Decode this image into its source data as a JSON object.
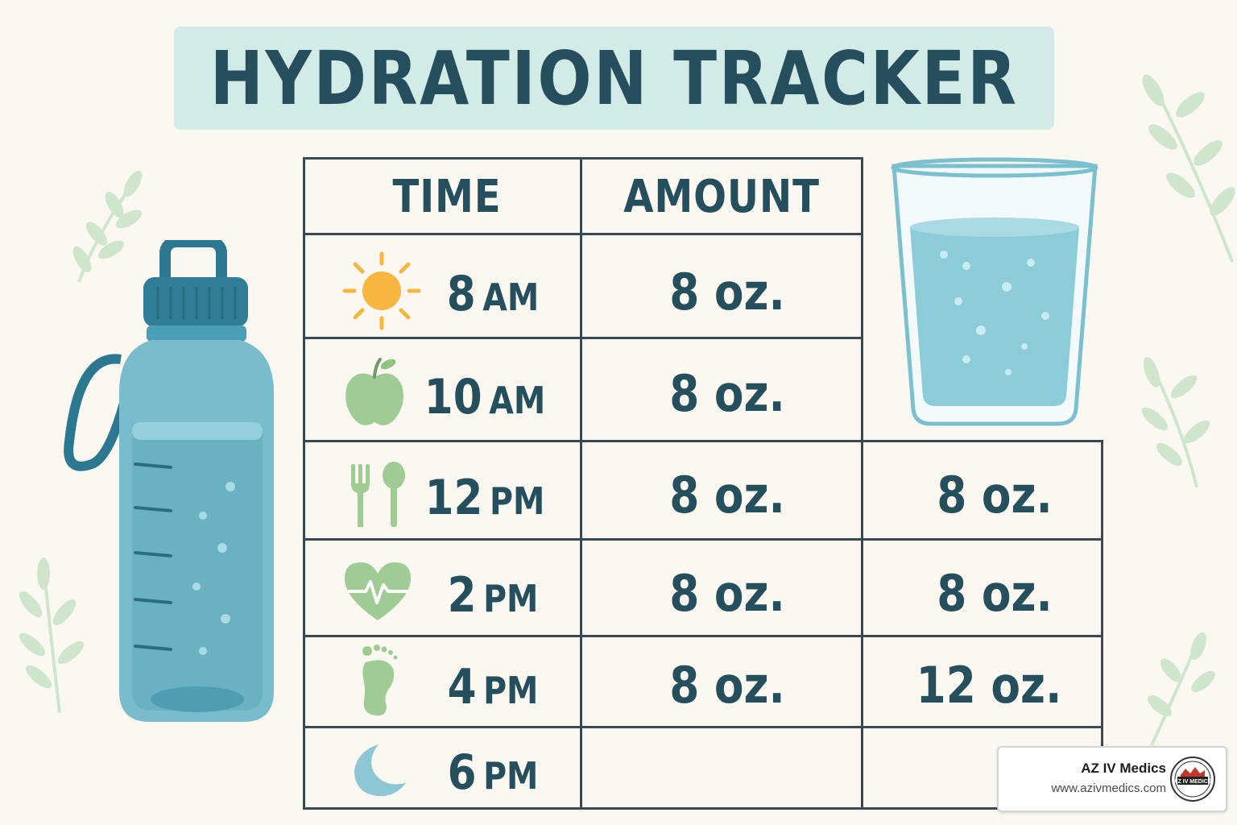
{
  "title": "HYDRATION TRACKER",
  "table": {
    "headers": {
      "time": "TIME",
      "amount": "AMOUNT"
    },
    "rows": [
      {
        "icon": "sun-icon",
        "time_num": "8",
        "time_suffix": "AM",
        "amount": "8 oz.",
        "extra": ""
      },
      {
        "icon": "apple-icon",
        "time_num": "10",
        "time_suffix": "AM",
        "amount": "8 oz.",
        "extra": ""
      },
      {
        "icon": "fork-spoon-icon",
        "time_num": "12",
        "time_suffix": "PM",
        "amount": "8 oz.",
        "extra": "8 oz."
      },
      {
        "icon": "heartbeat-icon",
        "time_num": "2",
        "time_suffix": "PM",
        "amount": "8 oz.",
        "extra": "8 oz."
      },
      {
        "icon": "footprint-icon",
        "time_num": "4",
        "time_suffix": "PM",
        "amount": "8 oz.",
        "extra": "12 oz."
      },
      {
        "icon": "moon-icon",
        "time_num": "6",
        "time_suffix": "PM",
        "amount": "",
        "extra": ""
      }
    ]
  },
  "brand": {
    "name": "AZ IV Medics",
    "url": "www.azivmedics.com",
    "logo_text": "AZ IV MEDICS"
  },
  "colors": {
    "background": "#fbf8f1",
    "banner": "#d3ebe6",
    "text": "#264f5e",
    "water": "#7cc0d0",
    "leaf": "#cfe6cc",
    "icon_green": "#9fcc94",
    "sun": "#f7b640"
  }
}
